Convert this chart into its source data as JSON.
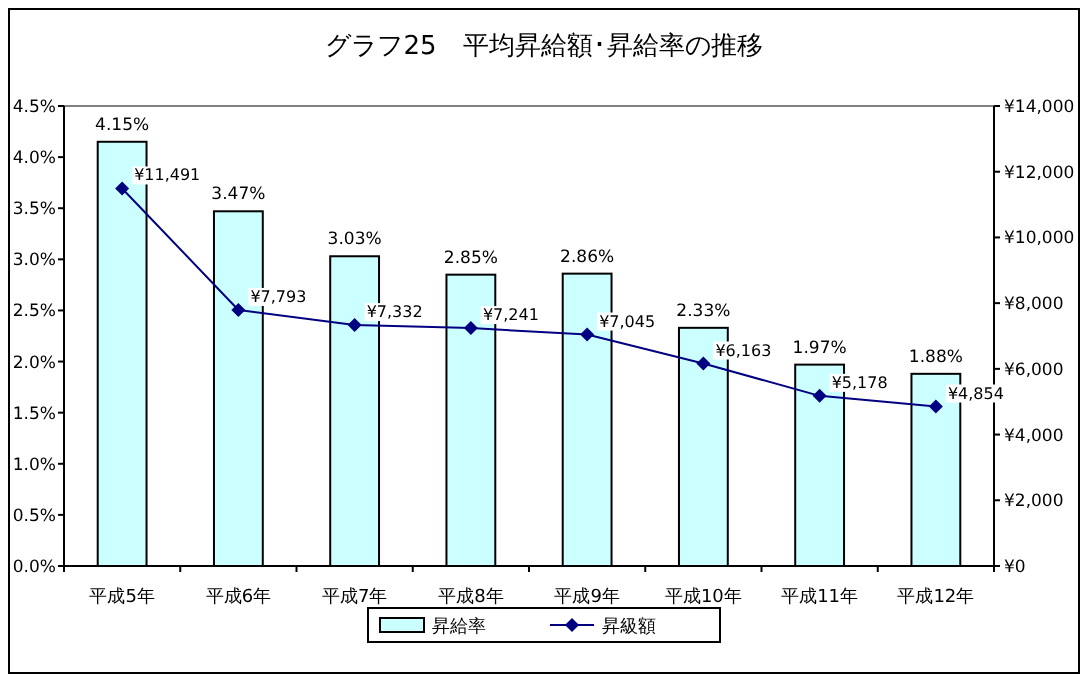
{
  "chart_data": {
    "type": "bar",
    "title": "グラフ25　平均昇給額･昇給率の推移",
    "categories": [
      "平成5年",
      "平成6年",
      "平成7年",
      "平成8年",
      "平成9年",
      "平成10年",
      "平成11年",
      "平成12年"
    ],
    "series": [
      {
        "name": "昇給率",
        "color": "#ccffff",
        "values": [
          4.15,
          3.47,
          3.03,
          2.85,
          2.86,
          2.33,
          1.97,
          1.88
        ],
        "value_labels": [
          "4.15%",
          "3.47%",
          "3.03%",
          "2.85%",
          "2.86%",
          "2.33%",
          "1.97%",
          "1.88%"
        ]
      },
      {
        "name": "昇級額",
        "type": "line",
        "axis": "y2",
        "color": "#000080",
        "marker": "diamond",
        "values": [
          11491,
          7793,
          7332,
          7241,
          7045,
          6163,
          5178,
          4854
        ],
        "value_labels": [
          "¥11,491",
          "¥7,793",
          "¥7,332",
          "¥7,241",
          "¥7,045",
          "¥6,163",
          "¥5,178",
          "¥4,854"
        ]
      }
    ],
    "ylim": [
      0,
      4.5
    ],
    "yticks": [
      {
        "value": 0,
        "label": "0.0%"
      },
      {
        "value": 0.5,
        "label": "0.5%"
      },
      {
        "value": 1,
        "label": "1.0%"
      },
      {
        "value": 1.5,
        "label": "1.5%"
      },
      {
        "value": 2,
        "label": "2.0%"
      },
      {
        "value": 2.5,
        "label": "2.5%"
      },
      {
        "value": 3,
        "label": "3.0%"
      },
      {
        "value": 3.5,
        "label": "3.5%"
      },
      {
        "value": 4,
        "label": "4.0%"
      },
      {
        "value": 4.5,
        "label": "4.5%"
      }
    ],
    "y2lim": [
      0,
      14000
    ],
    "y2ticks": [
      {
        "value": 0,
        "label": "¥0"
      },
      {
        "value": 2000,
        "label": "¥2,000"
      },
      {
        "value": 4000,
        "label": "¥4,000"
      },
      {
        "value": 6000,
        "label": "¥6,000"
      },
      {
        "value": 8000,
        "label": "¥8,000"
      },
      {
        "value": 10000,
        "label": "¥10,000"
      },
      {
        "value": 12000,
        "label": "¥12,000"
      },
      {
        "value": 14000,
        "label": "¥14,000"
      }
    ],
    "legend": "bottom"
  }
}
